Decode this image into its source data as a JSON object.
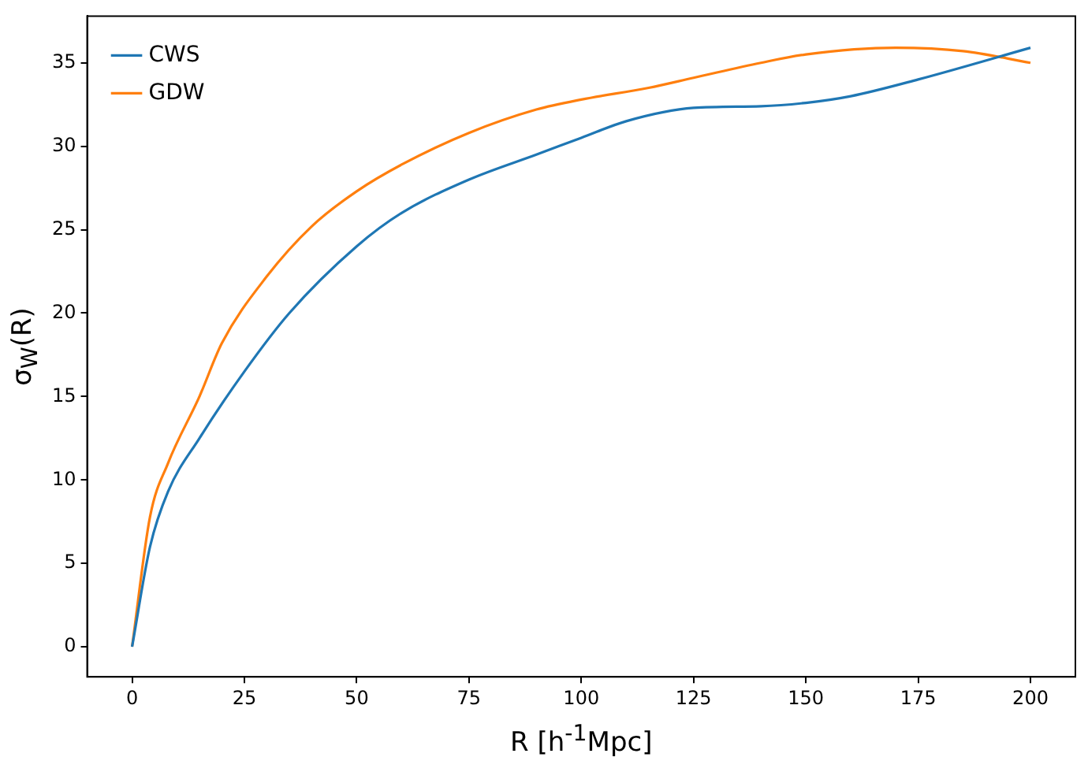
{
  "chart_data": {
    "type": "line",
    "xlabel": "R [h$^{-1}$Mpc]",
    "ylabel": "σ$_{W}$(R)",
    "xlim": [
      -10,
      210
    ],
    "ylim": [
      -1.8,
      37.8
    ],
    "xticks": [
      0,
      25,
      50,
      75,
      100,
      125,
      150,
      175,
      200
    ],
    "yticks": [
      0,
      5,
      10,
      15,
      20,
      25,
      30,
      35
    ],
    "grid": false,
    "legend": "top left",
    "marker": "none",
    "line_style": "solid",
    "series": [
      {
        "name": "CWS",
        "color": "#1f77b4",
        "x": [
          0,
          4,
          8,
          15,
          25,
          35,
          50,
          60,
          75,
          90,
          100,
          110,
          125,
          140,
          150,
          160,
          175,
          200
        ],
        "values": [
          0,
          6,
          9.3,
          12.5,
          16.5,
          20,
          24,
          26,
          28,
          29.5,
          30.5,
          31.5,
          32.3,
          32.4,
          32.6,
          33,
          34,
          35.9
        ]
      },
      {
        "name": "GDW",
        "color": "#ff7f0e",
        "x": [
          0,
          4,
          8,
          15,
          20,
          30,
          40,
          50,
          60,
          75,
          90,
          100,
          115,
          125,
          140,
          150,
          170,
          185,
          200
        ],
        "values": [
          0,
          7.8,
          11,
          15,
          18.2,
          22.2,
          25.2,
          27.3,
          28.9,
          30.8,
          32.2,
          32.8,
          33.5,
          34.1,
          35,
          35.5,
          35.9,
          35.7,
          35
        ]
      }
    ]
  }
}
